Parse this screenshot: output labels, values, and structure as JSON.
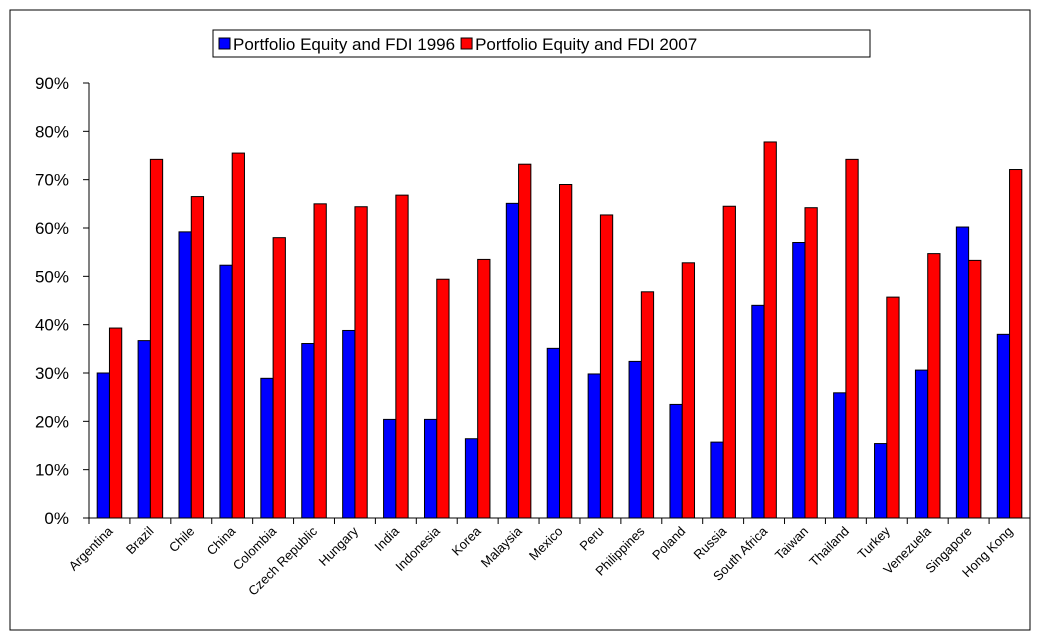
{
  "chart_data": {
    "type": "bar",
    "categories": [
      "Argentina",
      "Brazil",
      "Chile",
      "China",
      "Colombia",
      "Czech Republic",
      "Hungary",
      "India",
      "Indonesia",
      "Korea",
      "Malaysia",
      "Mexico",
      "Peru",
      "Philippines",
      "Poland",
      "Russia",
      "South Africa",
      "Taiwan",
      "Thailand",
      "Turkey",
      "Venezuela",
      "Singapore",
      "Hong Kong"
    ],
    "series": [
      {
        "name": "Portfolio Equity and FDI 1996",
        "color": "#0000ff",
        "values": [
          30,
          36.7,
          59.2,
          52.3,
          28.9,
          36.1,
          38.8,
          20.4,
          20.4,
          16.4,
          65.1,
          35.1,
          29.8,
          32.4,
          23.5,
          15.7,
          44,
          57,
          25.9,
          15.4,
          30.6,
          60.2,
          38
        ]
      },
      {
        "name": "Portfolio Equity and FDI 2007",
        "color": "#ff0000",
        "values": [
          39.3,
          74.2,
          66.5,
          75.5,
          58,
          65,
          64.4,
          66.8,
          49.4,
          53.5,
          73.2,
          69,
          62.7,
          46.8,
          52.8,
          64.5,
          77.8,
          64.2,
          74.2,
          45.7,
          54.7,
          53.3,
          72.1
        ]
      }
    ],
    "ylim": [
      0,
      90
    ],
    "yticks": [
      {
        "value": 0,
        "label": "0%"
      },
      {
        "value": 10,
        "label": "10%"
      },
      {
        "value": 20,
        "label": "20%"
      },
      {
        "value": 30,
        "label": "30%"
      },
      {
        "value": 40,
        "label": "40%"
      },
      {
        "value": 50,
        "label": "50%"
      },
      {
        "value": 60,
        "label": "60%"
      },
      {
        "value": 70,
        "label": "70%"
      },
      {
        "value": 80,
        "label": "80%"
      },
      {
        "value": 90,
        "label": "90%"
      }
    ],
    "legend": "top"
  }
}
